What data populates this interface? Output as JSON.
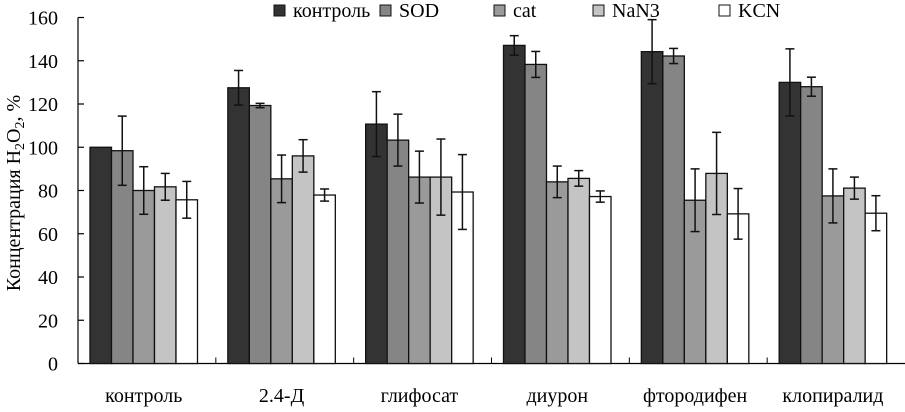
{
  "chart_data": {
    "type": "bar",
    "title": "",
    "xlabel": "",
    "ylabel": "Концентрация H2O2, %",
    "ylabel_parts": {
      "pre": "Концентрация H",
      "sub1": "2",
      "mid": "O",
      "sub2": "2",
      "post": ", %"
    },
    "ylim": [
      0,
      160
    ],
    "yticks": [
      0,
      20,
      40,
      60,
      80,
      100,
      120,
      140,
      160
    ],
    "grid": false,
    "legend_position": "top",
    "categories": [
      "контроль",
      "2.4-Д",
      "глифосат",
      "диурон",
      "фтородифен",
      "клопиралид"
    ],
    "series": [
      {
        "name": "контроль",
        "color": "#333333",
        "values": [
          100,
          127.5,
          110.7,
          147.1,
          144.2,
          130
        ],
        "errors": [
          0,
          8,
          15,
          4.5,
          14.8,
          15.5
        ]
      },
      {
        "name": "SOD",
        "color": "#858585",
        "values": [
          98.4,
          119.3,
          103.3,
          138.3,
          142.2,
          128
        ],
        "errors": [
          16,
          1,
          12,
          6,
          3.5,
          4.4
        ]
      },
      {
        "name": "cat",
        "color": "#9a9a9a",
        "values": [
          80,
          85.4,
          86.2,
          84,
          75.5,
          77.5
        ],
        "errors": [
          11,
          11,
          12,
          7.3,
          14.5,
          12.5
        ]
      },
      {
        "name": "NaN3",
        "color": "#c4c4c4",
        "values": [
          81.7,
          96,
          86.2,
          85.6,
          87.9,
          81.1
        ],
        "errors": [
          6.2,
          7.5,
          17.6,
          3.6,
          19,
          5.1
        ]
      },
      {
        "name": "KCN",
        "color": "#ffffff",
        "values": [
          75.7,
          77.9,
          79.3,
          77.2,
          69.2,
          69.5
        ],
        "errors": [
          8.5,
          2.8,
          17.3,
          2.6,
          11.7,
          8.1
        ]
      }
    ]
  }
}
